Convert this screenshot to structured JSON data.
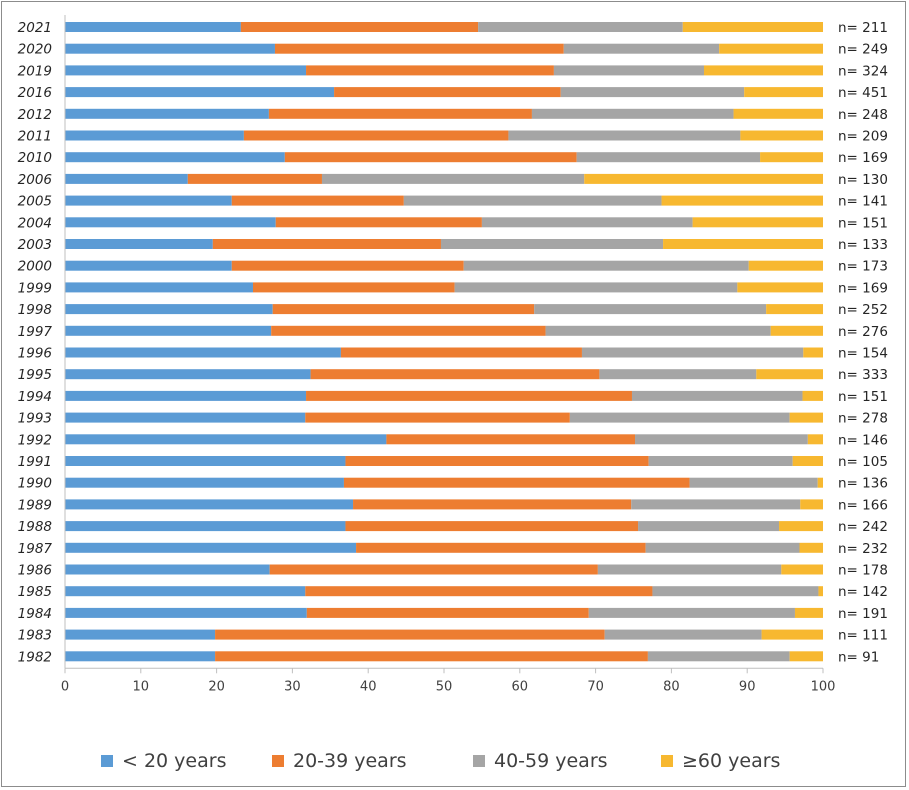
{
  "chart_data": {
    "type": "bar",
    "orientation": "horizontal",
    "stacked": true,
    "title": "",
    "xlabel": "",
    "ylabel": "",
    "xlim": [
      0,
      100
    ],
    "xticks": [
      0,
      10,
      20,
      30,
      40,
      50,
      60,
      70,
      80,
      90,
      100
    ],
    "grid": false,
    "legend_position": "bottom",
    "categories": [
      "2021",
      "2020",
      "2019",
      "2016",
      "2012",
      "2011",
      "2010",
      "2006",
      "2005",
      "2004",
      "2003",
      "2000",
      "1999",
      "1998",
      "1997",
      "1996",
      "1995",
      "1994",
      "1993",
      "1992",
      "1991",
      "1990",
      "1989",
      "1988",
      "1987",
      "1986",
      "1985",
      "1984",
      "1983",
      "1982"
    ],
    "n_labels": [
      "n= 211",
      "n= 249",
      "n= 324",
      "n= 451",
      "n= 248",
      "n= 209",
      "n= 169",
      "n= 130",
      "n= 141",
      "n= 151",
      "n= 133",
      "n= 173",
      "n= 169",
      "n= 252",
      "n= 276",
      "n= 154",
      "n= 333",
      "n= 151",
      "n= 278",
      "n= 146",
      "n= 105",
      "n= 136",
      "n= 166",
      "n= 242",
      "n= 232",
      "n= 178",
      "n= 142",
      "n= 191",
      "n= 111",
      "n= 91"
    ],
    "series": [
      {
        "name": "< 20 years",
        "color": "#5b9bd5",
        "values": [
          23.2,
          27.7,
          31.8,
          35.5,
          26.9,
          23.6,
          29.0,
          16.2,
          22.0,
          27.8,
          19.5,
          22.0,
          24.8,
          27.4,
          27.2,
          36.4,
          32.4,
          31.8,
          31.7,
          42.4,
          37.0,
          36.8,
          38.0,
          37.0,
          38.4,
          27.0,
          31.7,
          31.9,
          19.8,
          19.8
        ]
      },
      {
        "name": "20-39 years",
        "color": "#ed7d31",
        "values": [
          31.3,
          38.1,
          32.7,
          29.9,
          34.7,
          34.9,
          38.5,
          17.7,
          22.7,
          27.2,
          30.1,
          30.6,
          26.6,
          34.5,
          36.2,
          31.8,
          38.1,
          43.0,
          34.9,
          32.8,
          40.0,
          45.6,
          36.7,
          38.6,
          38.2,
          43.3,
          45.8,
          37.2,
          51.4,
          57.1
        ]
      },
      {
        "name": "40-59 years",
        "color": "#a5a5a5",
        "values": [
          27.0,
          20.5,
          19.8,
          24.2,
          26.6,
          30.6,
          24.2,
          34.6,
          34.0,
          27.8,
          29.3,
          37.6,
          37.3,
          30.6,
          29.7,
          29.2,
          20.7,
          22.5,
          29.0,
          22.8,
          19.0,
          16.9,
          22.3,
          18.6,
          20.3,
          24.2,
          21.9,
          27.2,
          20.7,
          18.7
        ]
      },
      {
        "name": "≥60 years",
        "color": "#f7b830",
        "values": [
          18.5,
          13.7,
          15.7,
          10.4,
          11.8,
          10.9,
          8.3,
          31.5,
          21.3,
          17.2,
          21.1,
          9.8,
          11.3,
          7.5,
          6.9,
          2.6,
          8.8,
          2.7,
          4.4,
          2.0,
          4.0,
          0.7,
          3.0,
          5.8,
          3.1,
          5.5,
          0.6,
          3.7,
          8.1,
          4.4
        ]
      }
    ]
  }
}
